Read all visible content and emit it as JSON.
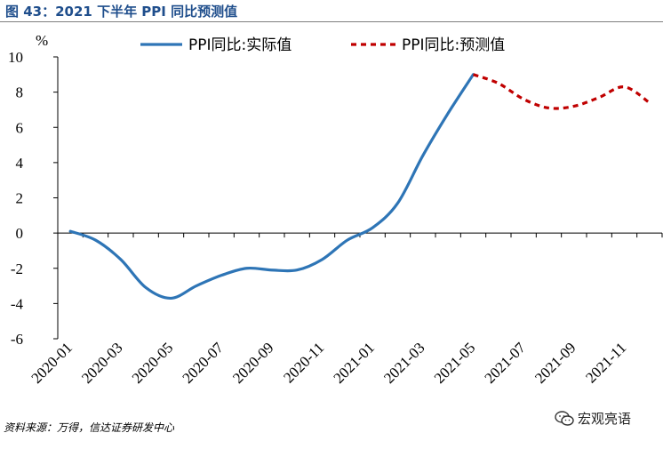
{
  "figure": {
    "title": "图 43：2021 下半年 PPI 同比预测值",
    "source": "资料来源：万得，信达证券研发中心",
    "watermark": "宏观亮语",
    "watermark_icon": "wechat-icon"
  },
  "chart_data": {
    "type": "line",
    "ylabel": "%",
    "ylim": [
      -6,
      10
    ],
    "yticks": [
      10,
      8,
      6,
      4,
      2,
      0,
      -2,
      -4,
      -6
    ],
    "ytick_labels": [
      "10",
      "8",
      "6",
      "4",
      "2",
      "0",
      "-2",
      "-4",
      "-6"
    ],
    "xtick_labels": [
      "2020-01",
      "2020-03",
      "2020-05",
      "2020-07",
      "2020-09",
      "2020-11",
      "2021-01",
      "2021-03",
      "2021-05",
      "2021-07",
      "2021-09",
      "2021-11"
    ],
    "x": [
      "2020-01",
      "2020-02",
      "2020-03",
      "2020-04",
      "2020-05",
      "2020-06",
      "2020-07",
      "2020-08",
      "2020-09",
      "2020-10",
      "2020-11",
      "2020-12",
      "2021-01",
      "2021-02",
      "2021-03",
      "2021-04",
      "2021-05",
      "2021-06",
      "2021-07",
      "2021-08",
      "2021-09",
      "2021-10",
      "2021-11",
      "2021-12"
    ],
    "grid": false,
    "legend_position": "top",
    "series": [
      {
        "name": "PPI同比:实际值",
        "color": "#2e75b6",
        "style": "solid",
        "values": [
          0.1,
          -0.4,
          -1.5,
          -3.1,
          -3.7,
          -3.0,
          -2.4,
          -2.0,
          -2.1,
          -2.1,
          -1.5,
          -0.4,
          0.3,
          1.7,
          4.4,
          6.8,
          9.0,
          null,
          null,
          null,
          null,
          null,
          null,
          null
        ]
      },
      {
        "name": "PPI同比:预测值",
        "color": "#c00000",
        "style": "dashed",
        "values": [
          null,
          null,
          null,
          null,
          null,
          null,
          null,
          null,
          null,
          null,
          null,
          null,
          null,
          null,
          null,
          null,
          9.0,
          8.5,
          7.6,
          7.1,
          7.2,
          7.7,
          8.3,
          7.4
        ]
      }
    ]
  }
}
